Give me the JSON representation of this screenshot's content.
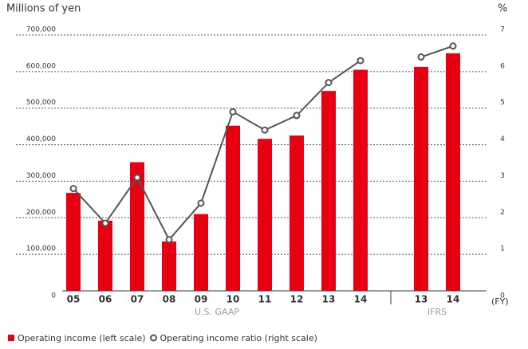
{
  "chart_data": [
    {
      "type": "bar-line",
      "y_label": "Millions of yen",
      "y2_label": "%",
      "x_unit": "(FY)",
      "x_label": "U.S. GAAP",
      "categories": [
        "05",
        "06",
        "07",
        "08",
        "09",
        "10",
        "11",
        "12",
        "13",
        "14"
      ],
      "series": [
        {
          "name": "Operating income (left scale)",
          "type": "bar",
          "color": "#e60012",
          "values": [
            268000,
            192000,
            352000,
            135000,
            210000,
            452000,
            416000,
            425000,
            547000,
            605000
          ]
        },
        {
          "name": "Operating income ratio (right scale)",
          "type": "line",
          "axis": "y2",
          "color": "#555555",
          "values": [
            2.8,
            1.85,
            3.1,
            1.4,
            2.4,
            4.9,
            4.4,
            4.8,
            5.7,
            6.3
          ]
        }
      ],
      "ylim": [
        0,
        700000
      ],
      "yticks": [
        0,
        {
          "value": 100000,
          "label": "100,000"
        },
        {
          "value": 200000,
          "label": "200,000"
        },
        {
          "value": 300000,
          "label": "300,000"
        },
        {
          "value": 400000,
          "label": "400,000"
        },
        {
          "value": 500000,
          "label": "500,000"
        },
        {
          "value": 600000,
          "label": "600,000"
        },
        {
          "value": 700000,
          "label": "700,000"
        }
      ],
      "y2lim": [
        0,
        7
      ],
      "y2ticks": [
        0,
        1,
        2,
        3,
        4,
        5,
        6,
        7
      ],
      "grid": true
    },
    {
      "type": "bar-line",
      "x_label": "IFRS",
      "categories": [
        "13",
        "14"
      ],
      "series": [
        {
          "type": "bar",
          "color": "#e60012",
          "values": [
            613000,
            650000
          ]
        },
        {
          "type": "line",
          "axis": "y2",
          "color": "#555555",
          "values": [
            6.4,
            6.7
          ]
        }
      ]
    }
  ]
}
